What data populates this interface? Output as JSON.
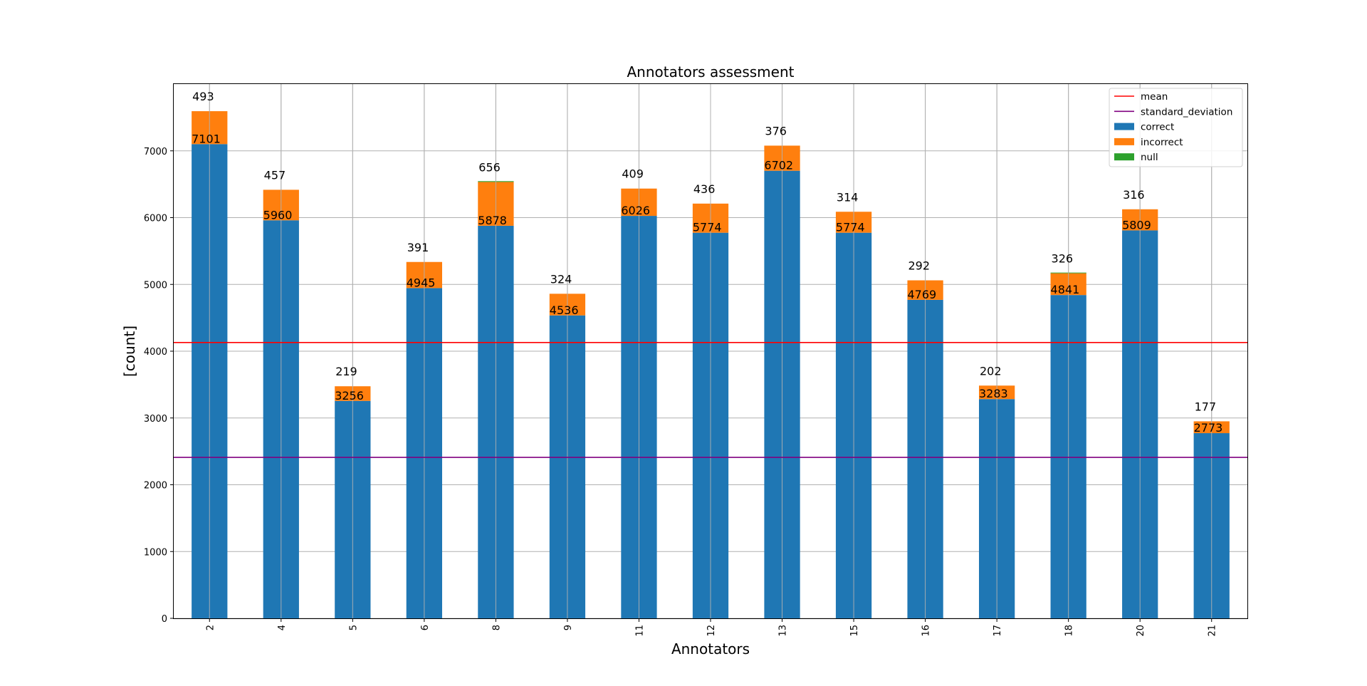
{
  "chart_data": {
    "type": "bar",
    "stacked": true,
    "title": "Annotators assessment",
    "xlabel": "Annotators",
    "ylabel": "[count]",
    "ylim": [
      0,
      8000
    ],
    "yticks": [
      0,
      1000,
      2000,
      3000,
      4000,
      5000,
      6000,
      7000
    ],
    "grid": true,
    "legend_position": "top-right",
    "categories": [
      "2",
      "4",
      "5",
      "6",
      "8",
      "9",
      "11",
      "12",
      "13",
      "15",
      "16",
      "17",
      "18",
      "20",
      "21"
    ],
    "series": [
      {
        "name": "correct",
        "color": "#1f77b4",
        "values": [
          7101,
          5960,
          3256,
          4945,
          5878,
          4536,
          6026,
          5774,
          6702,
          5774,
          4769,
          3283,
          4841,
          5809,
          2773
        ]
      },
      {
        "name": "incorrect",
        "color": "#ff7f0e",
        "values": [
          493,
          457,
          219,
          391,
          656,
          324,
          409,
          436,
          376,
          314,
          292,
          202,
          326,
          316,
          177
        ]
      },
      {
        "name": "null",
        "color": "#2ca02c",
        "values": [
          0,
          0,
          0,
          0,
          12,
          0,
          0,
          0,
          0,
          0,
          0,
          0,
          10,
          0,
          0
        ]
      }
    ],
    "reference_lines": [
      {
        "name": "mean",
        "color": "#ff0000",
        "value": 4130
      },
      {
        "name": "standard_deviation",
        "color": "#800080",
        "value": 2410
      }
    ],
    "data_labels": {
      "correct_top": [
        "7101",
        "5960",
        "3256",
        "4945",
        "5878",
        "4536",
        "6026",
        "5774",
        "6702",
        "5774",
        "4769",
        "3283",
        "4841",
        "5809",
        "2773"
      ],
      "incorrect_above": [
        "493",
        "457",
        "219",
        "391",
        "656",
        "324",
        "409",
        "436",
        "376",
        "314",
        "292",
        "202",
        "326",
        "316",
        "177"
      ]
    },
    "legend": [
      "mean",
      "standard_deviation",
      "correct",
      "incorrect",
      "null"
    ]
  }
}
